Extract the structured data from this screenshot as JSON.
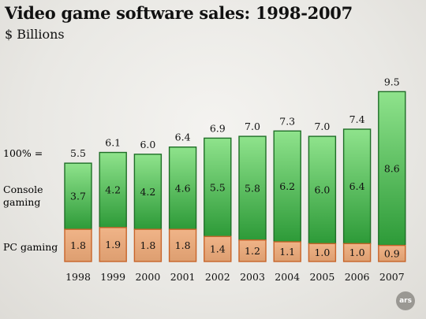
{
  "chart_data": {
    "type": "bar",
    "stacked": true,
    "title": "Video game software sales: 1998-2007",
    "subtitle": "$ Billions",
    "categories": [
      "1998",
      "1999",
      "2000",
      "2001",
      "2002",
      "2003",
      "2004",
      "2005",
      "2006",
      "2007"
    ],
    "totals": [
      5.5,
      6.1,
      6.0,
      6.4,
      6.9,
      7.0,
      7.3,
      7.0,
      7.4,
      9.5
    ],
    "series": [
      {
        "name": "PC gaming",
        "values": [
          1.8,
          1.9,
          1.8,
          1.8,
          1.4,
          1.2,
          1.1,
          1.0,
          1.0,
          0.9
        ],
        "color": "#d9824a"
      },
      {
        "name": "Console gaming",
        "values": [
          3.7,
          4.2,
          4.2,
          4.6,
          5.5,
          5.8,
          6.2,
          6.0,
          6.4,
          8.6
        ],
        "color": "#2f9a3a"
      }
    ],
    "hundred_percent_label": "100% =",
    "legend_placement": "left",
    "grid": false
  },
  "logo": {
    "text": "ars"
  }
}
